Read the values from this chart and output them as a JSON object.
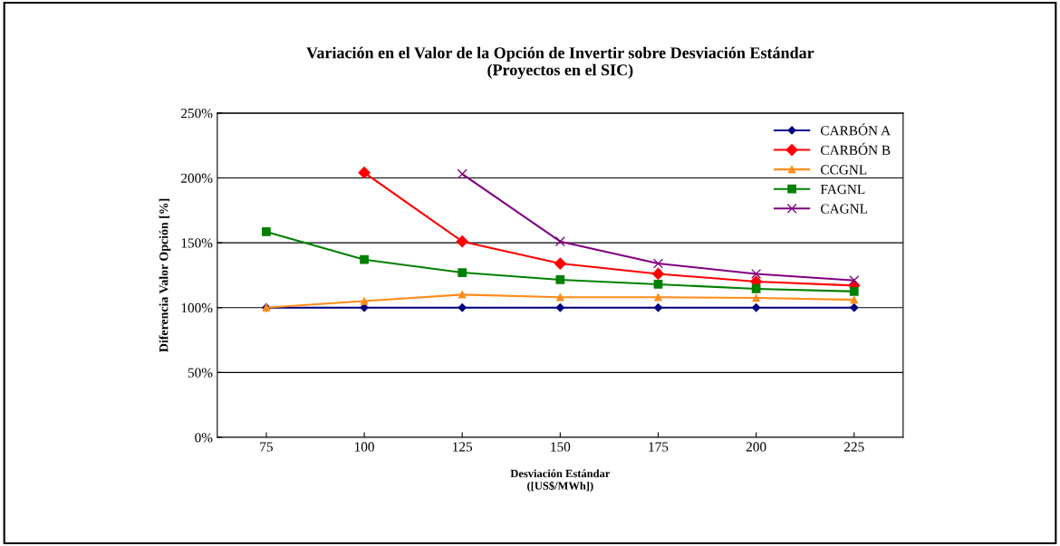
{
  "chart_data": {
    "type": "line",
    "title": "Variación en el Valor de la Opción de Invertir sobre Desviación Estándar\n(Proyectos en el SIC)",
    "xlabel": "Desviación Estándar\n([US$/MWh])",
    "ylabel": "Diferencia Valor Opción [%]",
    "x": [
      75,
      100,
      125,
      150,
      175,
      200,
      225
    ],
    "xlim": [
      62.5,
      237.5
    ],
    "xticks": [
      75,
      100,
      125,
      150,
      175,
      200,
      225
    ],
    "ylim": [
      0,
      250
    ],
    "yticks": [
      {
        "value": 0,
        "label": "0%"
      },
      {
        "value": 50,
        "label": "50%"
      },
      {
        "value": 100,
        "label": "100%"
      },
      {
        "value": 150,
        "label": "150%"
      },
      {
        "value": 200,
        "label": "200%"
      },
      {
        "value": 250,
        "label": "250%"
      }
    ],
    "grid": "y",
    "legend": "top right",
    "series": [
      {
        "name": "CARBÓN A",
        "color": "#000080",
        "marker": "diamond",
        "values": [
          100,
          100,
          100,
          100,
          100,
          100,
          100
        ]
      },
      {
        "name": "CARBÓN B",
        "color": "#ff0000",
        "marker": "diamond",
        "x": [
          100,
          125,
          150,
          175,
          200,
          225
        ],
        "values": [
          204,
          151,
          134,
          126,
          120,
          117
        ]
      },
      {
        "name": "CCGNL",
        "color": "#ff8c1a",
        "marker": "triangle",
        "values": [
          100,
          105,
          110,
          108,
          108,
          107.5,
          106
        ]
      },
      {
        "name": "FAGNL",
        "color": "#008000",
        "marker": "square",
        "values": [
          158.5,
          137,
          127,
          121.5,
          118,
          114.5,
          112.5
        ]
      },
      {
        "name": "CAGNL",
        "color": "#800080",
        "marker": "cross",
        "x": [
          125,
          150,
          175,
          200,
          225
        ],
        "values": [
          203,
          151,
          134,
          126,
          121
        ]
      }
    ]
  }
}
